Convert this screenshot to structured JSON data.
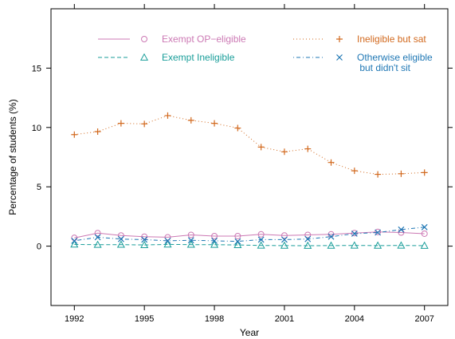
{
  "chart_data": {
    "type": "line",
    "xlabel": "Year",
    "ylabel": "Percentage of students (%)",
    "xlim": [
      1991.0,
      2008.0
    ],
    "ylim": [
      -5.0,
      20.0
    ],
    "xticks": [
      1992,
      1995,
      1998,
      2001,
      2004,
      2007
    ],
    "yticks": [
      0,
      5,
      10,
      15
    ],
    "grid": false,
    "legend_position": "top",
    "x": [
      1992,
      1993,
      1994,
      1995,
      1996,
      1997,
      1998,
      1999,
      2000,
      2001,
      2002,
      2003,
      2004,
      2005,
      2006,
      2007
    ],
    "series": [
      {
        "name": "Exempt OP−eligible",
        "marker": "circle",
        "dash": "solid",
        "color": "#cc79b4",
        "values": [
          0.7,
          1.1,
          0.9,
          0.8,
          0.75,
          0.95,
          0.85,
          0.85,
          1.0,
          0.9,
          0.95,
          1.0,
          1.1,
          1.2,
          1.15,
          1.05
        ]
      },
      {
        "name": "Ineligible but sat",
        "marker": "plus",
        "dash": "dotted",
        "color": "#d2691e",
        "values": [
          9.4,
          9.65,
          10.35,
          10.3,
          11.0,
          10.6,
          10.35,
          9.95,
          8.35,
          7.95,
          8.2,
          7.05,
          6.35,
          6.05,
          6.1,
          6.2
        ]
      },
      {
        "name": "Exempt Ineligible",
        "marker": "triangle",
        "dash": "dashed",
        "color": "#1a9e9a",
        "values": [
          0.15,
          0.12,
          0.13,
          0.1,
          0.15,
          0.13,
          0.12,
          0.1,
          0.06,
          0.05,
          0.04,
          0.05,
          0.06,
          0.05,
          0.06,
          0.04
        ]
      },
      {
        "name": "Otherwise eligible\n but didn't sit",
        "marker": "x",
        "dash": "dotdash",
        "color": "#1f77b4",
        "values": [
          0.45,
          0.75,
          0.6,
          0.55,
          0.45,
          0.5,
          0.45,
          0.4,
          0.55,
          0.55,
          0.6,
          0.8,
          1.05,
          1.15,
          1.4,
          1.6
        ]
      }
    ]
  }
}
